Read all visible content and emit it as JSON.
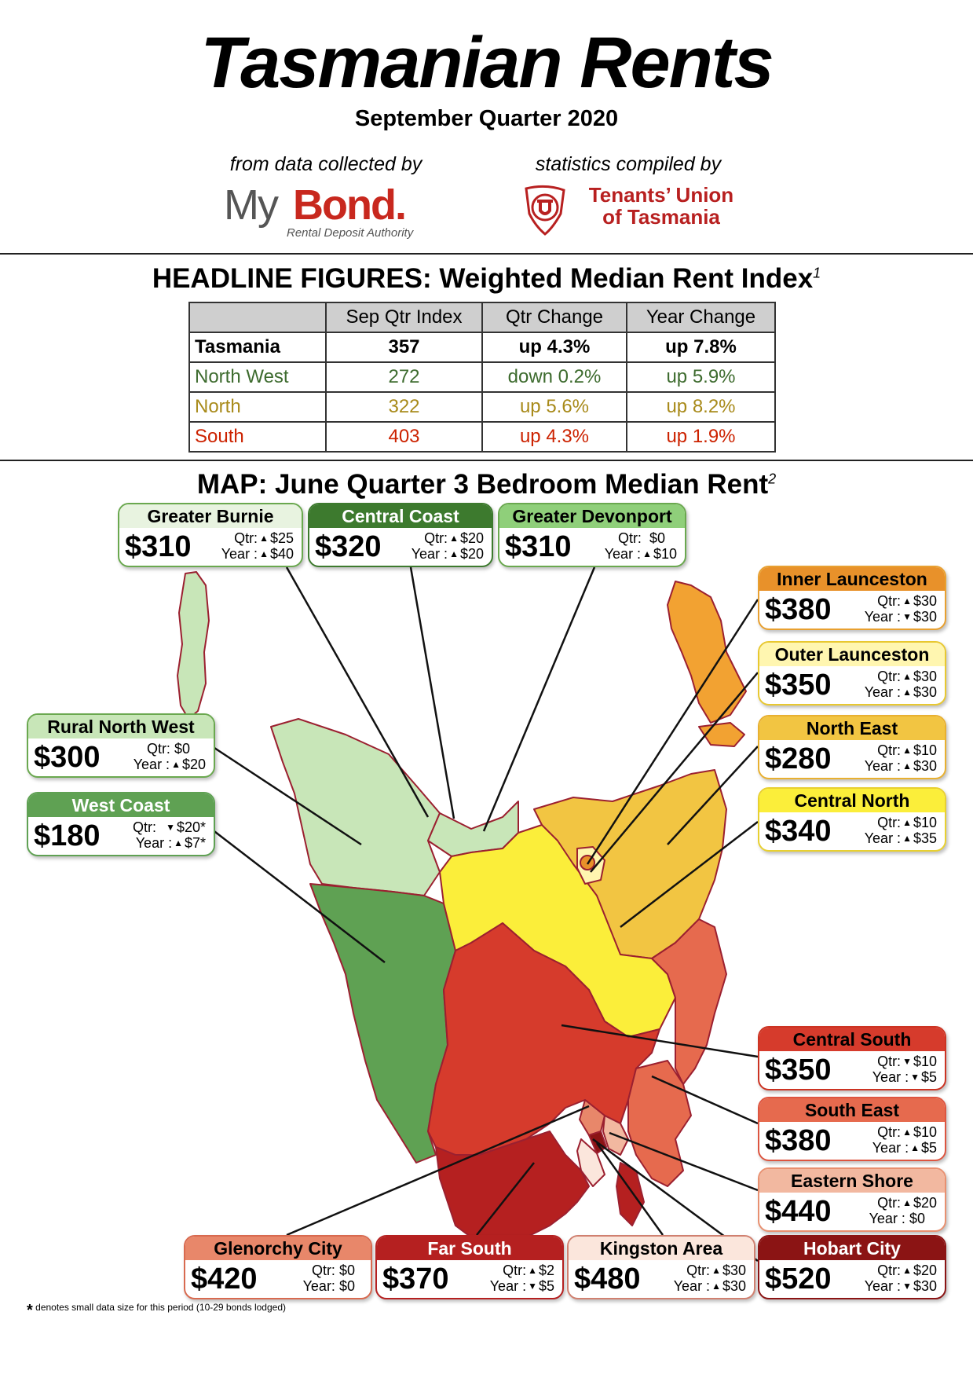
{
  "header": {
    "title": "Tasmanian Rents",
    "subtitle": "September Quarter 2020",
    "credit_left": "from data collected by",
    "credit_right": "statistics compiled by",
    "mybond": {
      "my": "My",
      "bond": "Bond.",
      "tagline": "Rental Deposit Authority"
    },
    "tu": {
      "line1": "Tenants’ Union",
      "line2": "of Tasmania"
    }
  },
  "headline": {
    "title": "HEADLINE FIGURES: Weighted Median Rent Index",
    "footnote_mark": "1",
    "columns": [
      "",
      "Sep Qtr Index",
      "Qtr Change",
      "Year Change"
    ],
    "rows": [
      {
        "name": "Tasmania",
        "index": "357",
        "qtr": "up 4.3%",
        "year": "up 7.8%",
        "color": "#000000",
        "bold": true
      },
      {
        "name": "North West",
        "index": "272",
        "qtr": "down 0.2%",
        "year": "up 5.9%",
        "color": "#3d6b2e",
        "bold": false
      },
      {
        "name": "North",
        "index": "322",
        "qtr": "up 5.6%",
        "year": "up 8.2%",
        "color": "#a88a1a",
        "bold": false
      },
      {
        "name": "South",
        "index": "403",
        "qtr": "up 4.3%",
        "year": "up 1.9%",
        "color": "#cc2200",
        "bold": false
      }
    ]
  },
  "map": {
    "title": "MAP: June Quarter 3 Bedroom Median Rent",
    "footnote_mark": "2",
    "regions": [
      {
        "key": "greater-burnie",
        "name": "Greater Burnie",
        "price": "$310",
        "qtr_label": "Qtr:",
        "qtr_dir": "up",
        "qtr": "$25",
        "year_label": "Year :",
        "year_dir": "up",
        "year": "$40",
        "color": "#c8e6b8",
        "border": "#6aa84f",
        "text": "#000"
      },
      {
        "key": "central-coast",
        "name": "Central Coast",
        "price": "$320",
        "qtr_label": "Qtr:",
        "qtr_dir": "up",
        "qtr": "$20",
        "year_label": "Year :",
        "year_dir": "up",
        "year": "$20",
        "color": "#3d7a2e",
        "border": "#3d7a2e",
        "text": "#fff"
      },
      {
        "key": "greater-devonport",
        "name": "Greater Devonport",
        "price": "$310",
        "qtr_label": "Qtr:",
        "qtr_dir": "flat",
        "qtr": "$0",
        "year_label": "Year :",
        "year_dir": "up",
        "year": "$10",
        "color": "#8fcf7a",
        "border": "#6aa84f",
        "text": "#000"
      },
      {
        "key": "inner-launceston",
        "name": "Inner Launceston",
        "price": "$380",
        "qtr_label": "Qtr:",
        "qtr_dir": "up",
        "qtr": "$30",
        "year_label": "Year :",
        "year_dir": "down",
        "year": "$30",
        "color": "#e8912a",
        "border": "#e8a030",
        "text": "#000"
      },
      {
        "key": "outer-launceston",
        "name": "Outer Launceston",
        "price": "$350",
        "qtr_label": "Qtr:",
        "qtr_dir": "up",
        "qtr": "$30",
        "year_label": "Year :",
        "year_dir": "up",
        "year": "$30",
        "color": "#fff6b0",
        "border": "#e8c830",
        "text": "#000"
      },
      {
        "key": "north-east",
        "name": "North East",
        "price": "$280",
        "qtr_label": "Qtr:",
        "qtr_dir": "up",
        "qtr": "$10",
        "year_label": "Year :",
        "year_dir": "up",
        "year": "$30",
        "color": "#f2c542",
        "border": "#e8b030",
        "text": "#000"
      },
      {
        "key": "central-north",
        "name": "Central North",
        "price": "$340",
        "qtr_label": "Qtr:",
        "qtr_dir": "up",
        "qtr": "$10",
        "year_label": "Year :",
        "year_dir": "up",
        "year": "$35",
        "color": "#fbee3a",
        "border": "#e8d030",
        "text": "#000"
      },
      {
        "key": "rural-north-west",
        "name": "Rural North West",
        "price": "$300",
        "qtr_label": "Qtr:",
        "qtr_dir": "flat",
        "qtr": "$0",
        "year_label": "Year :",
        "year_dir": "up",
        "year": "$20",
        "color": "#c8e6b8",
        "border": "#6aa84f",
        "text": "#000"
      },
      {
        "key": "west-coast",
        "name": "West Coast",
        "price": "$180",
        "qtr_label": "Qtr:",
        "qtr_dir": "down",
        "qtr": "$20*",
        "year_label": "Year :",
        "year_dir": "up",
        "year": "$7*",
        "color": "#5fa153",
        "border": "#5fa153",
        "text": "#fff"
      },
      {
        "key": "central-south",
        "name": "Central South",
        "price": "$350",
        "qtr_label": "Qtr:",
        "qtr_dir": "down",
        "qtr": "$10",
        "year_label": "Year :",
        "year_dir": "down",
        "year": "$5",
        "color": "#d63b2c",
        "border": "#cc3322",
        "text": "#000"
      },
      {
        "key": "south-east",
        "name": "South East",
        "price": "$380",
        "qtr_label": "Qtr:",
        "qtr_dir": "up",
        "qtr": "$10",
        "year_label": "Year :",
        "year_dir": "up",
        "year": "$5",
        "color": "#e66a4e",
        "border": "#dd5540",
        "text": "#000"
      },
      {
        "key": "eastern-shore",
        "name": "Eastern Shore",
        "price": "$440",
        "qtr_label": "Qtr:",
        "qtr_dir": "up",
        "qtr": "$20",
        "year_label": "Year :",
        "year_dir": "flat",
        "year": "$0",
        "color": "#f2b8a0",
        "border": "#e89070",
        "text": "#000"
      },
      {
        "key": "glenorchy-city",
        "name": "Glenorchy City",
        "price": "$420",
        "qtr_label": "Qtr:",
        "qtr_dir": "flat",
        "qtr": "$0",
        "year_label": "Year:",
        "year_dir": "flat",
        "year": "$0",
        "color": "#e8876a",
        "border": "#d86a50",
        "text": "#000"
      },
      {
        "key": "far-south",
        "name": "Far South",
        "price": "$370",
        "qtr_label": "Qtr:",
        "qtr_dir": "up",
        "qtr": "$2",
        "year_label": "Year :",
        "year_dir": "down",
        "year": "$5",
        "color": "#b52020",
        "border": "#b52020",
        "text": "#fff"
      },
      {
        "key": "kingston-area",
        "name": "Kingston Area",
        "price": "$480",
        "qtr_label": "Qtr:",
        "qtr_dir": "up",
        "qtr": "$30",
        "year_label": "Year :",
        "year_dir": "up",
        "year": "$30",
        "color": "#fbe6dc",
        "border": "#d08070",
        "text": "#000"
      },
      {
        "key": "hobart-city",
        "name": "Hobart City",
        "price": "$520",
        "qtr_label": "Qtr:",
        "qtr_dir": "up",
        "qtr": "$20",
        "year_label": "Year :",
        "year_dir": "down",
        "year": "$30",
        "color": "#8b1414",
        "border": "#8b1414",
        "text": "#fff"
      }
    ]
  },
  "footnote": {
    "mark": "*",
    "text": "denotes small data size for this period (10-29 bonds lodged)"
  }
}
